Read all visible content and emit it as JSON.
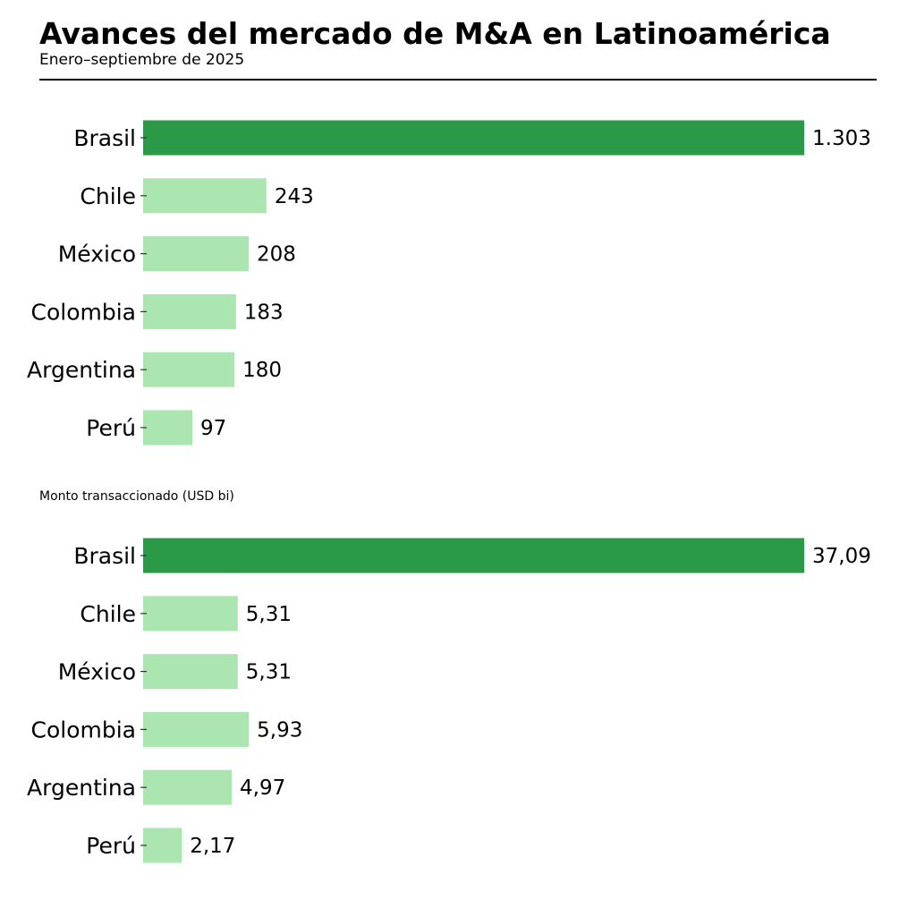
{
  "header": {
    "title": "Avances del mercado de M&A en Latinoamérica",
    "subtitle": "Enero–septiembre de 2025"
  },
  "colors": {
    "highlight": "#2a9a48",
    "base": "#abe5b0",
    "text": "#000000",
    "rule": "#000000"
  },
  "chart_data": [
    {
      "type": "bar",
      "orientation": "horizontal",
      "title": "",
      "xlabel": "",
      "ylabel": "",
      "categories": [
        "Brasil",
        "Chile",
        "México",
        "Colombia",
        "Argentina",
        "Perú"
      ],
      "values": [
        1303,
        243,
        208,
        183,
        180,
        97
      ],
      "value_labels": [
        "1.303",
        "243",
        "208",
        "183",
        "180",
        "97"
      ],
      "highlight": "Brasil",
      "grid": false,
      "legend": "none"
    },
    {
      "type": "bar",
      "orientation": "horizontal",
      "title": "Monto transaccionado (USD bi)",
      "xlabel": "",
      "ylabel": "",
      "categories": [
        "Brasil",
        "Chile",
        "México",
        "Colombia",
        "Argentina",
        "Perú"
      ],
      "values": [
        37.09,
        5.31,
        5.31,
        5.93,
        4.97,
        2.17
      ],
      "value_labels": [
        "37,09",
        "5,31",
        "5,31",
        "5,93",
        "4,97",
        "2,17"
      ],
      "highlight": "Brasil",
      "grid": false,
      "legend": "none"
    }
  ]
}
